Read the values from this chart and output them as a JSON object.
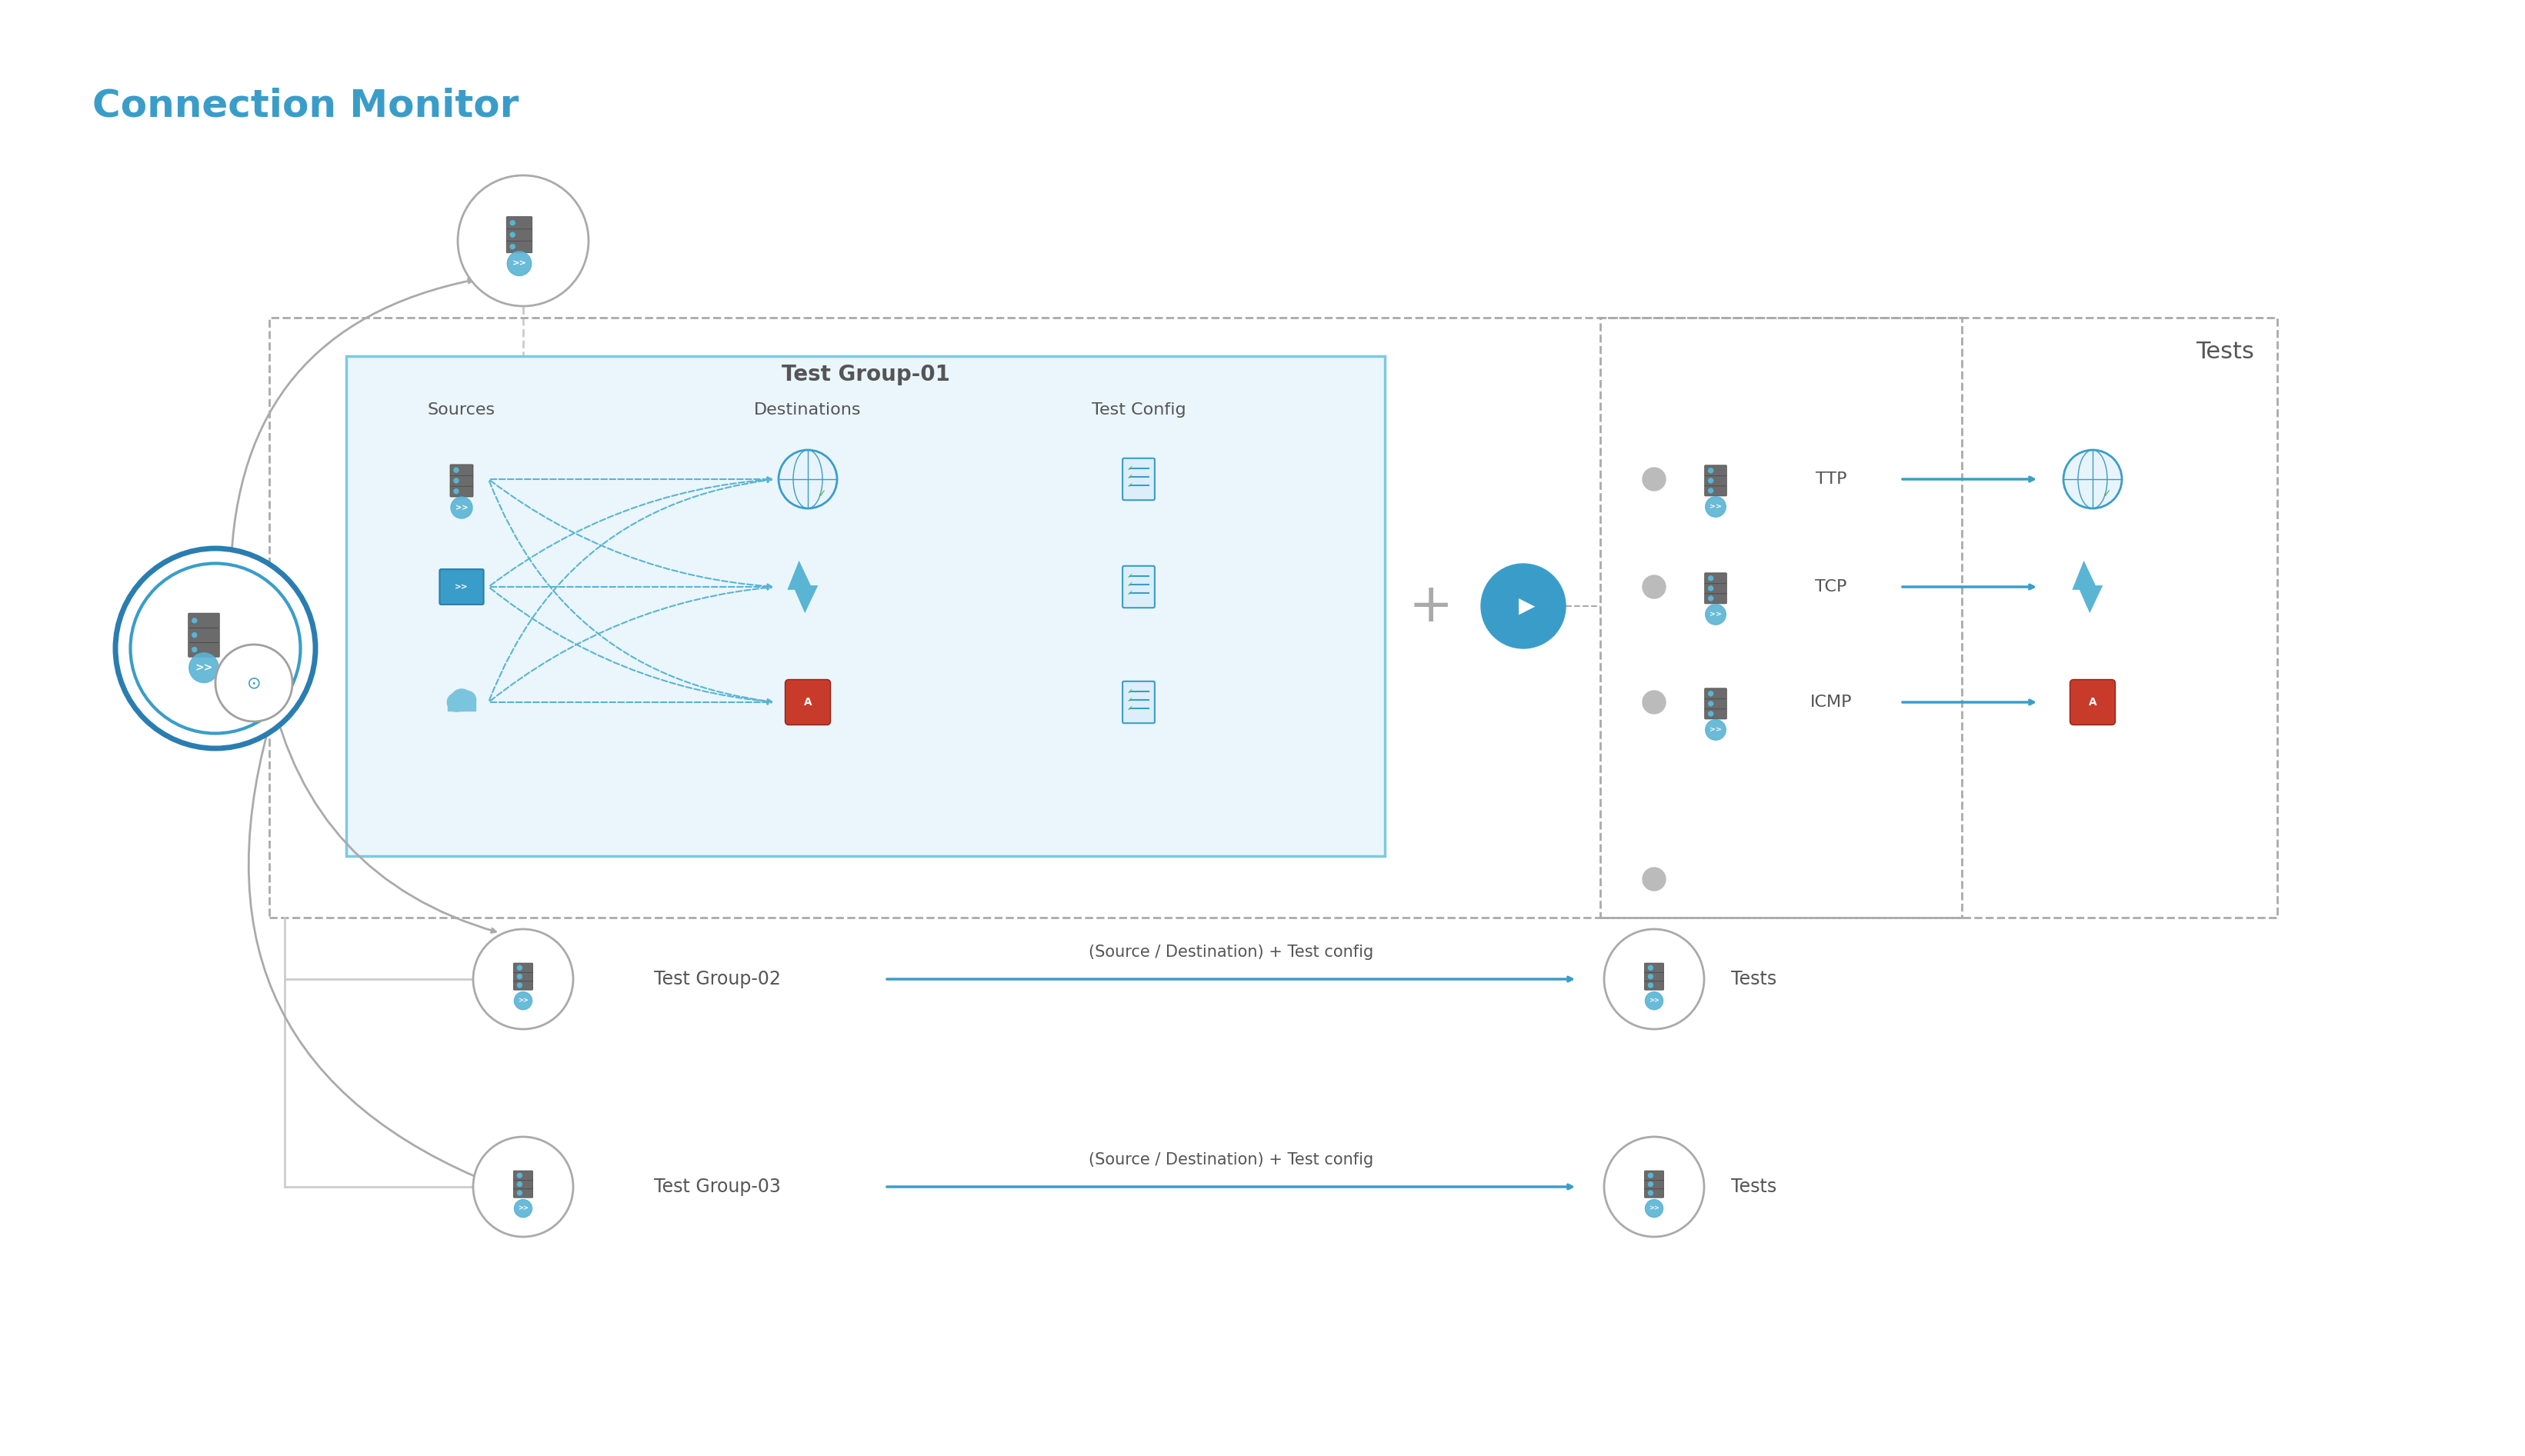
{
  "title": "Connection Monitor",
  "title_color": "#3a9dc9",
  "title_fontsize": 36,
  "bg_color": "#ffffff",
  "test_group_01_label": "Test Group-01",
  "test_group_02_label": "Test Group-02",
  "test_group_03_label": "Test Group-03",
  "sources_label": "Sources",
  "destinations_label": "Destinations",
  "test_config_label": "Test Config",
  "tests_label": "Tests",
  "ttp_label": "TTP",
  "tcp_label": "TCP",
  "icmp_label": "ICMP",
  "source_dest_label": "(Source / Destination) + Test config",
  "gray_color": "#a0a0a0",
  "light_blue_fill": "#e8f4fb",
  "light_blue_border": "#7ec8e3",
  "dark_blue": "#1a6b9a",
  "medium_blue": "#3a9dc9",
  "arrow_blue": "#3a9dc9",
  "dashed_gray": "#c0c0c0"
}
